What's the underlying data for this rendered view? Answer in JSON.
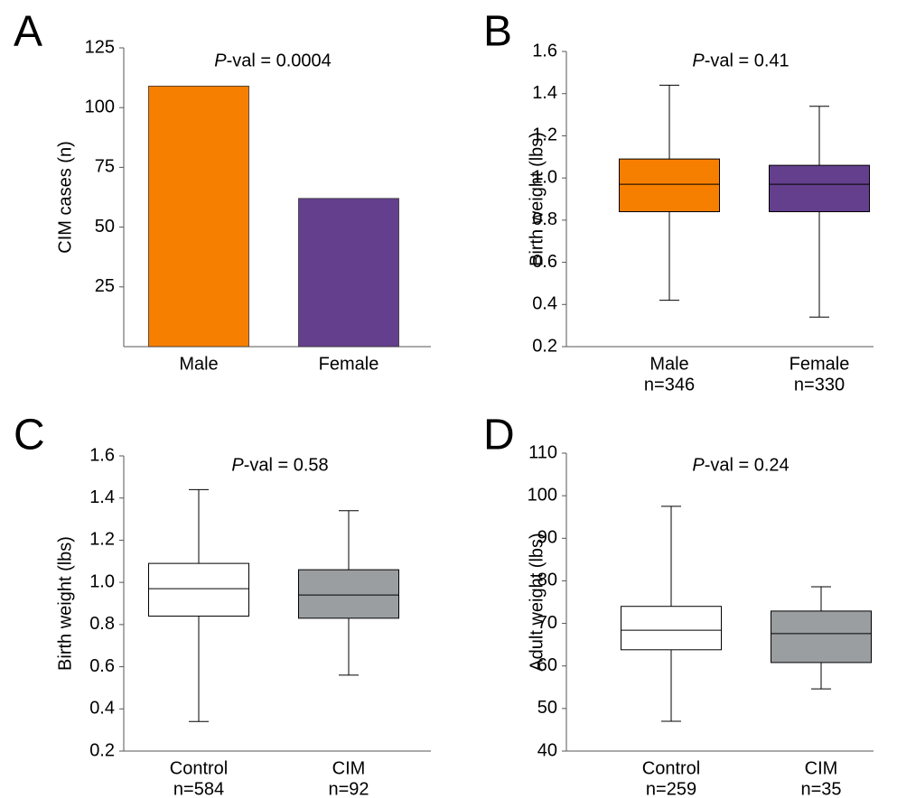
{
  "chart_data": [
    {
      "type": "bar",
      "panel_label": "A",
      "title": "P-val = 0.0004",
      "ylabel": "CIM cases (n)",
      "categories": [
        "Male",
        "Female"
      ],
      "values": [
        109,
        62
      ],
      "colors": [
        "#f77f00",
        "#643f8e"
      ],
      "ylim": [
        0,
        125
      ],
      "yticks": [
        25,
        50,
        75,
        100,
        125
      ]
    },
    {
      "type": "box",
      "panel_label": "B",
      "title": "P-val = 0.41",
      "ylabel": "Birth weight (lbs)",
      "categories": [
        "Male",
        "Female"
      ],
      "n_labels": [
        "n=346",
        "n=330"
      ],
      "boxes": [
        {
          "low": 0.42,
          "q1": 0.84,
          "median": 0.97,
          "q3": 1.09,
          "high": 1.44
        },
        {
          "low": 0.34,
          "q1": 0.84,
          "median": 0.97,
          "q3": 1.06,
          "high": 1.34
        }
      ],
      "colors": [
        "#f77f00",
        "#643f8e"
      ],
      "ylim": [
        0.2,
        1.6
      ],
      "yticks": [
        0.2,
        0.4,
        0.6,
        0.8,
        {
          "value": 1,
          "label": "1.0"
        },
        1.2,
        1.4,
        1.6
      ]
    },
    {
      "type": "box",
      "panel_label": "C",
      "title": "P-val = 0.58",
      "ylabel": "Birth weight (lbs)",
      "categories": [
        "Control",
        "CIM"
      ],
      "n_labels": [
        "n=584",
        "n=92"
      ],
      "boxes": [
        {
          "low": 0.34,
          "q1": 0.84,
          "median": 0.97,
          "q3": 1.09,
          "high": 1.44
        },
        {
          "low": 0.56,
          "q1": 0.83,
          "median": 0.94,
          "q3": 1.06,
          "high": 1.34
        }
      ],
      "colors": [
        "#ffffff",
        "#9a9ea1"
      ],
      "ylim": [
        0.2,
        1.6
      ],
      "yticks": [
        0.2,
        0.4,
        0.6,
        0.8,
        {
          "value": 1,
          "label": "1.0"
        },
        1.2,
        1.4,
        1.6
      ]
    },
    {
      "type": "box",
      "panel_label": "D",
      "title": "P-val = 0.24",
      "ylabel": "Adult weight (lbs)",
      "categories": [
        "Control",
        "CIM"
      ],
      "n_labels": [
        "n=259",
        "n=35"
      ],
      "boxes": [
        {
          "low": 47,
          "q1": 63.8,
          "median": 68.4,
          "q3": 74,
          "high": 97.5
        },
        {
          "low": 54.6,
          "q1": 60.8,
          "median": 67.6,
          "q3": 72.9,
          "high": 78.6
        }
      ],
      "colors": [
        "#ffffff",
        "#9a9ea1"
      ],
      "ylim": [
        40,
        110
      ],
      "yticks": [
        40,
        50,
        60,
        70,
        80,
        90,
        100,
        110
      ]
    }
  ]
}
